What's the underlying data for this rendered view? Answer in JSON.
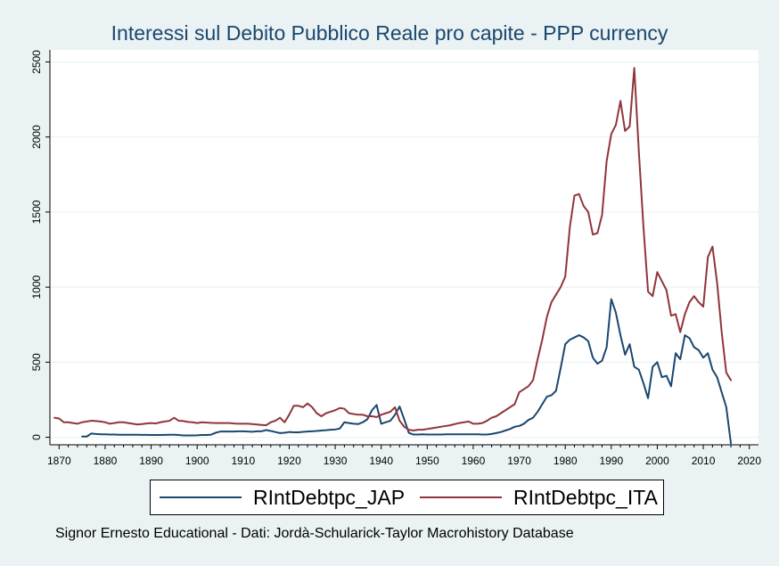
{
  "title": "Interessi sul Debito Pubblico Reale pro capite - PPP currency",
  "footnote": "Signor Ernesto Educational - Dati: Jordà-Schularick-Taylor Macrohistory Database",
  "colors": {
    "background": "#eaf2f3",
    "plot_background": "#ffffff",
    "grid": "#eaf2f3",
    "jap": "#1a476f",
    "ita": "#90353b"
  },
  "legend": {
    "items": [
      {
        "label": "RIntDebtpc_JAP",
        "color": "#1a476f"
      },
      {
        "label": "RIntDebtpc_ITA",
        "color": "#90353b"
      }
    ]
  },
  "chart_data": {
    "type": "line",
    "title": "Interessi sul Debito Pubblico Reale pro capite - PPP currency",
    "xlabel": "",
    "ylabel": "",
    "xlim": [
      1868,
      2022
    ],
    "ylim": [
      -50,
      2580
    ],
    "x_ticks": [
      "1870",
      "1880",
      "1890",
      "1900",
      "1910",
      "1920",
      "1930",
      "1940",
      "1950",
      "1960",
      "1970",
      "1980",
      "1990",
      "2000",
      "2010",
      "2020"
    ],
    "y_ticks": [
      "0",
      "500",
      "1000",
      "1500",
      "2000",
      "2500"
    ],
    "grid": true,
    "legend_position": "bottom",
    "series": [
      {
        "name": "RIntDebtpc_JAP",
        "color": "#1a476f",
        "points": [
          [
            1875,
            5
          ],
          [
            1876,
            5
          ],
          [
            1877,
            25
          ],
          [
            1878,
            22
          ],
          [
            1879,
            20
          ],
          [
            1880,
            20
          ],
          [
            1881,
            18
          ],
          [
            1882,
            18
          ],
          [
            1883,
            17
          ],
          [
            1884,
            17
          ],
          [
            1885,
            17
          ],
          [
            1886,
            17
          ],
          [
            1887,
            17
          ],
          [
            1888,
            16
          ],
          [
            1889,
            16
          ],
          [
            1890,
            15
          ],
          [
            1891,
            15
          ],
          [
            1892,
            15
          ],
          [
            1893,
            16
          ],
          [
            1894,
            17
          ],
          [
            1895,
            17
          ],
          [
            1896,
            15
          ],
          [
            1897,
            12
          ],
          [
            1898,
            12
          ],
          [
            1899,
            12
          ],
          [
            1900,
            13
          ],
          [
            1901,
            15
          ],
          [
            1902,
            15
          ],
          [
            1903,
            17
          ],
          [
            1904,
            30
          ],
          [
            1905,
            38
          ],
          [
            1906,
            38
          ],
          [
            1907,
            38
          ],
          [
            1908,
            38
          ],
          [
            1909,
            40
          ],
          [
            1910,
            40
          ],
          [
            1911,
            38
          ],
          [
            1912,
            37
          ],
          [
            1913,
            40
          ],
          [
            1914,
            40
          ],
          [
            1915,
            48
          ],
          [
            1916,
            42
          ],
          [
            1917,
            35
          ],
          [
            1918,
            28
          ],
          [
            1919,
            30
          ],
          [
            1920,
            35
          ],
          [
            1921,
            33
          ],
          [
            1922,
            33
          ],
          [
            1923,
            36
          ],
          [
            1924,
            38
          ],
          [
            1925,
            40
          ],
          [
            1926,
            42
          ],
          [
            1927,
            45
          ],
          [
            1928,
            47
          ],
          [
            1929,
            50
          ],
          [
            1930,
            52
          ],
          [
            1931,
            58
          ],
          [
            1932,
            100
          ],
          [
            1933,
            95
          ],
          [
            1934,
            90
          ],
          [
            1935,
            88
          ],
          [
            1936,
            100
          ],
          [
            1937,
            120
          ],
          [
            1938,
            180
          ],
          [
            1939,
            215
          ],
          [
            1940,
            90
          ],
          [
            1941,
            100
          ],
          [
            1942,
            110
          ],
          [
            1943,
            150
          ],
          [
            1944,
            205
          ],
          [
            1945,
            120
          ],
          [
            1946,
            30
          ],
          [
            1947,
            18
          ],
          [
            1948,
            18
          ],
          [
            1949,
            20
          ],
          [
            1950,
            18
          ],
          [
            1951,
            18
          ],
          [
            1952,
            18
          ],
          [
            1953,
            18
          ],
          [
            1954,
            20
          ],
          [
            1955,
            20
          ],
          [
            1956,
            20
          ],
          [
            1957,
            20
          ],
          [
            1958,
            20
          ],
          [
            1959,
            20
          ],
          [
            1960,
            20
          ],
          [
            1961,
            20
          ],
          [
            1962,
            18
          ],
          [
            1963,
            18
          ],
          [
            1964,
            22
          ],
          [
            1965,
            28
          ],
          [
            1966,
            35
          ],
          [
            1967,
            45
          ],
          [
            1968,
            55
          ],
          [
            1969,
            70
          ],
          [
            1970,
            75
          ],
          [
            1971,
            90
          ],
          [
            1972,
            115
          ],
          [
            1973,
            130
          ],
          [
            1974,
            170
          ],
          [
            1975,
            220
          ],
          [
            1976,
            270
          ],
          [
            1977,
            280
          ],
          [
            1978,
            310
          ],
          [
            1979,
            460
          ],
          [
            1980,
            620
          ],
          [
            1981,
            650
          ],
          [
            1982,
            665
          ],
          [
            1983,
            680
          ],
          [
            1984,
            665
          ],
          [
            1985,
            640
          ],
          [
            1986,
            530
          ],
          [
            1987,
            490
          ],
          [
            1988,
            510
          ],
          [
            1989,
            600
          ],
          [
            1990,
            920
          ],
          [
            1991,
            830
          ],
          [
            1992,
            680
          ],
          [
            1993,
            550
          ],
          [
            1994,
            620
          ],
          [
            1995,
            470
          ],
          [
            1996,
            450
          ],
          [
            1997,
            360
          ],
          [
            1998,
            260
          ],
          [
            1999,
            470
          ],
          [
            2000,
            500
          ],
          [
            2001,
            400
          ],
          [
            2002,
            410
          ],
          [
            2003,
            340
          ],
          [
            2004,
            560
          ],
          [
            2005,
            520
          ],
          [
            2006,
            680
          ],
          [
            2007,
            660
          ],
          [
            2008,
            600
          ],
          [
            2009,
            580
          ],
          [
            2010,
            530
          ],
          [
            2011,
            560
          ],
          [
            2012,
            450
          ],
          [
            2013,
            400
          ],
          [
            2014,
            300
          ],
          [
            2015,
            200
          ],
          [
            2016,
            -40
          ]
        ]
      },
      {
        "name": "RIntDebtpc_ITA",
        "color": "#90353b",
        "points": [
          [
            1869,
            130
          ],
          [
            1870,
            125
          ],
          [
            1871,
            100
          ],
          [
            1872,
            100
          ],
          [
            1873,
            95
          ],
          [
            1874,
            90
          ],
          [
            1875,
            100
          ],
          [
            1876,
            105
          ],
          [
            1877,
            110
          ],
          [
            1878,
            108
          ],
          [
            1879,
            105
          ],
          [
            1880,
            100
          ],
          [
            1881,
            90
          ],
          [
            1882,
            95
          ],
          [
            1883,
            100
          ],
          [
            1884,
            100
          ],
          [
            1885,
            95
          ],
          [
            1886,
            90
          ],
          [
            1887,
            85
          ],
          [
            1888,
            88
          ],
          [
            1889,
            92
          ],
          [
            1890,
            95
          ],
          [
            1891,
            92
          ],
          [
            1892,
            100
          ],
          [
            1893,
            105
          ],
          [
            1894,
            110
          ],
          [
            1895,
            130
          ],
          [
            1896,
            110
          ],
          [
            1897,
            108
          ],
          [
            1898,
            102
          ],
          [
            1899,
            100
          ],
          [
            1900,
            95
          ],
          [
            1901,
            100
          ],
          [
            1902,
            98
          ],
          [
            1903,
            96
          ],
          [
            1904,
            95
          ],
          [
            1905,
            95
          ],
          [
            1906,
            95
          ],
          [
            1907,
            95
          ],
          [
            1908,
            92
          ],
          [
            1909,
            90
          ],
          [
            1910,
            90
          ],
          [
            1911,
            90
          ],
          [
            1912,
            88
          ],
          [
            1913,
            85
          ],
          [
            1914,
            82
          ],
          [
            1915,
            80
          ],
          [
            1916,
            100
          ],
          [
            1917,
            110
          ],
          [
            1918,
            130
          ],
          [
            1919,
            100
          ],
          [
            1920,
            150
          ],
          [
            1921,
            210
          ],
          [
            1922,
            210
          ],
          [
            1923,
            200
          ],
          [
            1924,
            225
          ],
          [
            1925,
            200
          ],
          [
            1926,
            160
          ],
          [
            1927,
            140
          ],
          [
            1928,
            160
          ],
          [
            1929,
            170
          ],
          [
            1930,
            180
          ],
          [
            1931,
            195
          ],
          [
            1932,
            190
          ],
          [
            1933,
            160
          ],
          [
            1934,
            155
          ],
          [
            1935,
            150
          ],
          [
            1936,
            150
          ],
          [
            1937,
            140
          ],
          [
            1938,
            140
          ],
          [
            1939,
            135
          ],
          [
            1940,
            150
          ],
          [
            1941,
            160
          ],
          [
            1942,
            170
          ],
          [
            1943,
            200
          ],
          [
            1944,
            110
          ],
          [
            1945,
            70
          ],
          [
            1946,
            50
          ],
          [
            1947,
            45
          ],
          [
            1948,
            50
          ],
          [
            1949,
            50
          ],
          [
            1950,
            55
          ],
          [
            1951,
            60
          ],
          [
            1952,
            65
          ],
          [
            1953,
            70
          ],
          [
            1954,
            75
          ],
          [
            1955,
            80
          ],
          [
            1956,
            88
          ],
          [
            1957,
            95
          ],
          [
            1958,
            100
          ],
          [
            1959,
            105
          ],
          [
            1960,
            90
          ],
          [
            1961,
            90
          ],
          [
            1962,
            95
          ],
          [
            1963,
            110
          ],
          [
            1964,
            130
          ],
          [
            1965,
            140
          ],
          [
            1966,
            160
          ],
          [
            1967,
            180
          ],
          [
            1968,
            200
          ],
          [
            1969,
            220
          ],
          [
            1970,
            300
          ],
          [
            1971,
            320
          ],
          [
            1972,
            340
          ],
          [
            1973,
            380
          ],
          [
            1974,
            520
          ],
          [
            1975,
            650
          ],
          [
            1976,
            800
          ],
          [
            1977,
            900
          ],
          [
            1978,
            950
          ],
          [
            1979,
            1000
          ],
          [
            1980,
            1070
          ],
          [
            1981,
            1400
          ],
          [
            1982,
            1610
          ],
          [
            1983,
            1620
          ],
          [
            1984,
            1540
          ],
          [
            1985,
            1500
          ],
          [
            1986,
            1350
          ],
          [
            1987,
            1360
          ],
          [
            1988,
            1480
          ],
          [
            1989,
            1840
          ],
          [
            1990,
            2020
          ],
          [
            1991,
            2080
          ],
          [
            1992,
            2240
          ],
          [
            1993,
            2040
          ],
          [
            1994,
            2070
          ],
          [
            1995,
            2460
          ],
          [
            1996,
            1900
          ],
          [
            1997,
            1400
          ],
          [
            1998,
            970
          ],
          [
            1999,
            940
          ],
          [
            2000,
            1100
          ],
          [
            2001,
            1040
          ],
          [
            2002,
            980
          ],
          [
            2003,
            810
          ],
          [
            2004,
            820
          ],
          [
            2005,
            700
          ],
          [
            2006,
            820
          ],
          [
            2007,
            900
          ],
          [
            2008,
            940
          ],
          [
            2009,
            900
          ],
          [
            2010,
            870
          ],
          [
            2011,
            1200
          ],
          [
            2012,
            1270
          ],
          [
            2013,
            1030
          ],
          [
            2014,
            700
          ],
          [
            2015,
            430
          ],
          [
            2016,
            380
          ]
        ]
      }
    ]
  }
}
